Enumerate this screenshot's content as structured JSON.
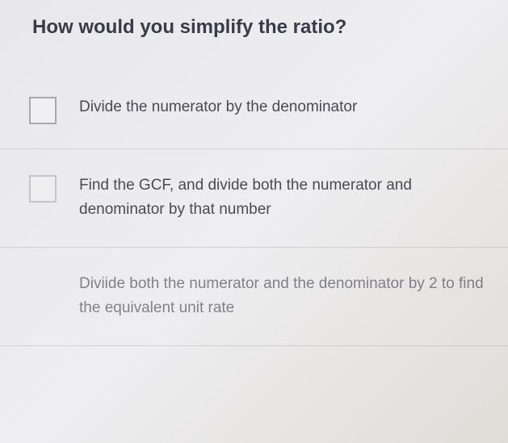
{
  "question": {
    "title": "How would you simplify the ratio?"
  },
  "options": [
    {
      "label": "Divide the numerator by the denominator",
      "checkbox_visible": true,
      "faded": false
    },
    {
      "label": "Find the GCF, and divide both the numerator and denominator by that number",
      "checkbox_visible": true,
      "faded": false
    },
    {
      "label": "Diviide both the numerator and the denominator by 2 to find the equivalent unit rate",
      "checkbox_visible": false,
      "faded": true
    }
  ],
  "colors": {
    "background_start": "#e8e8ea",
    "background_end": "#e0ddd8",
    "title_color": "#3a3a48",
    "text_color": "#4a4a56",
    "checkbox_border": "#a8a8b0",
    "divider": "rgba(180, 180, 188, 0.5)"
  }
}
